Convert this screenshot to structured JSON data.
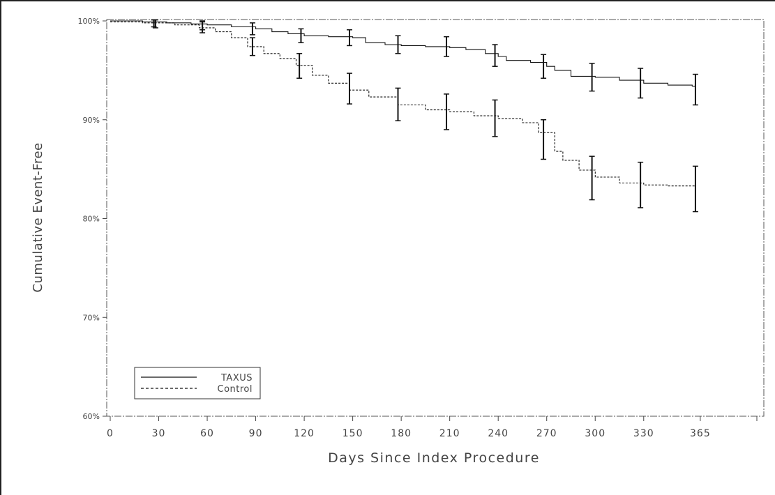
{
  "chart_data": {
    "type": "line",
    "title": "",
    "xlabel": "Days Since Index Procedure",
    "ylabel": "Cumulative Event-Free",
    "xlim": [
      0,
      400
    ],
    "ylim": [
      60,
      100
    ],
    "x_ticks": [
      {
        "value": 0,
        "label": "0"
      },
      {
        "value": 30,
        "label": "30"
      },
      {
        "value": 60,
        "label": "60"
      },
      {
        "value": 90,
        "label": "90"
      },
      {
        "value": 120,
        "label": "120"
      },
      {
        "value": 150,
        "label": "150"
      },
      {
        "value": 180,
        "label": "180"
      },
      {
        "value": 210,
        "label": "210"
      },
      {
        "value": 240,
        "label": "240"
      },
      {
        "value": 270,
        "label": "270"
      },
      {
        "value": 300,
        "label": "300"
      },
      {
        "value": 330,
        "label": "330"
      },
      {
        "value": 365,
        "label": "365"
      }
    ],
    "y_ticks": [
      {
        "value": 60,
        "label": "60%"
      },
      {
        "value": 70,
        "label": "70%"
      },
      {
        "value": 80,
        "label": "80%"
      },
      {
        "value": 90,
        "label": "90%"
      },
      {
        "value": 100,
        "label": "100%"
      }
    ],
    "legend": {
      "position": "bottom-left"
    },
    "grid": false,
    "series": [
      {
        "name": "TAXUS",
        "style": "solid",
        "color": "#111111",
        "x": [
          0,
          20,
          35,
          50,
          60,
          75,
          90,
          100,
          110,
          120,
          135,
          150,
          158,
          170,
          180,
          195,
          210,
          220,
          232,
          240,
          245,
          260,
          270,
          275,
          285,
          300,
          315,
          330,
          345,
          360,
          362
        ],
        "y": [
          100,
          99.9,
          99.8,
          99.7,
          99.6,
          99.4,
          99.2,
          98.9,
          98.7,
          98.5,
          98.4,
          98.3,
          97.8,
          97.6,
          97.5,
          97.4,
          97.3,
          97.1,
          96.7,
          96.4,
          96.0,
          95.8,
          95.4,
          95.0,
          94.4,
          94.3,
          94.0,
          93.7,
          93.5,
          93.4,
          92.9
        ],
        "error_bars": [
          {
            "x": 27,
            "y": 99.8,
            "low": 99.4,
            "high": 100.1
          },
          {
            "x": 57,
            "y": 99.6,
            "low": 99.1,
            "high": 100.0
          },
          {
            "x": 88,
            "y": 99.2,
            "low": 98.6,
            "high": 99.8
          },
          {
            "x": 118,
            "y": 98.5,
            "low": 97.8,
            "high": 99.2
          },
          {
            "x": 148,
            "y": 98.3,
            "low": 97.5,
            "high": 99.1
          },
          {
            "x": 178,
            "y": 97.5,
            "low": 96.7,
            "high": 98.5
          },
          {
            "x": 208,
            "y": 97.4,
            "low": 96.4,
            "high": 98.4
          },
          {
            "x": 238,
            "y": 96.5,
            "low": 95.4,
            "high": 97.6
          },
          {
            "x": 268,
            "y": 95.4,
            "low": 94.2,
            "high": 96.6
          },
          {
            "x": 298,
            "y": 94.3,
            "low": 92.9,
            "high": 95.7
          },
          {
            "x": 328,
            "y": 93.7,
            "low": 92.2,
            "high": 95.2
          },
          {
            "x": 362,
            "y": 93.0,
            "low": 91.5,
            "high": 94.6
          }
        ]
      },
      {
        "name": "Control",
        "style": "dashed",
        "color": "#111111",
        "x": [
          0,
          20,
          40,
          55,
          65,
          75,
          85,
          95,
          105,
          115,
          125,
          135,
          148,
          160,
          178,
          195,
          210,
          225,
          240,
          255,
          265,
          275,
          280,
          290,
          300,
          315,
          330,
          345,
          360,
          362
        ],
        "y": [
          99.9,
          99.8,
          99.6,
          99.3,
          98.9,
          98.3,
          97.4,
          96.7,
          96.2,
          95.5,
          94.5,
          93.7,
          93.0,
          92.3,
          91.5,
          91.0,
          90.8,
          90.4,
          90.1,
          89.7,
          88.7,
          86.8,
          85.9,
          84.9,
          84.2,
          83.6,
          83.4,
          83.3,
          83.3,
          82.7
        ],
        "error_bars": [
          {
            "x": 28,
            "y": 99.7,
            "low": 99.3,
            "high": 100.1
          },
          {
            "x": 57,
            "y": 99.3,
            "low": 98.8,
            "high": 99.9
          },
          {
            "x": 88,
            "y": 97.4,
            "low": 96.5,
            "high": 98.3
          },
          {
            "x": 117,
            "y": 95.5,
            "low": 94.2,
            "high": 96.7
          },
          {
            "x": 148,
            "y": 93.1,
            "low": 91.6,
            "high": 94.7
          },
          {
            "x": 178,
            "y": 91.6,
            "low": 89.9,
            "high": 93.2
          },
          {
            "x": 208,
            "y": 90.8,
            "low": 89.0,
            "high": 92.6
          },
          {
            "x": 238,
            "y": 90.2,
            "low": 88.3,
            "high": 92.0
          },
          {
            "x": 268,
            "y": 88.0,
            "low": 86.0,
            "high": 90.0
          },
          {
            "x": 298,
            "y": 84.1,
            "low": 81.9,
            "high": 86.3
          },
          {
            "x": 328,
            "y": 83.4,
            "low": 81.1,
            "high": 85.7
          },
          {
            "x": 362,
            "y": 83.0,
            "low": 80.7,
            "high": 85.3
          }
        ]
      }
    ]
  }
}
